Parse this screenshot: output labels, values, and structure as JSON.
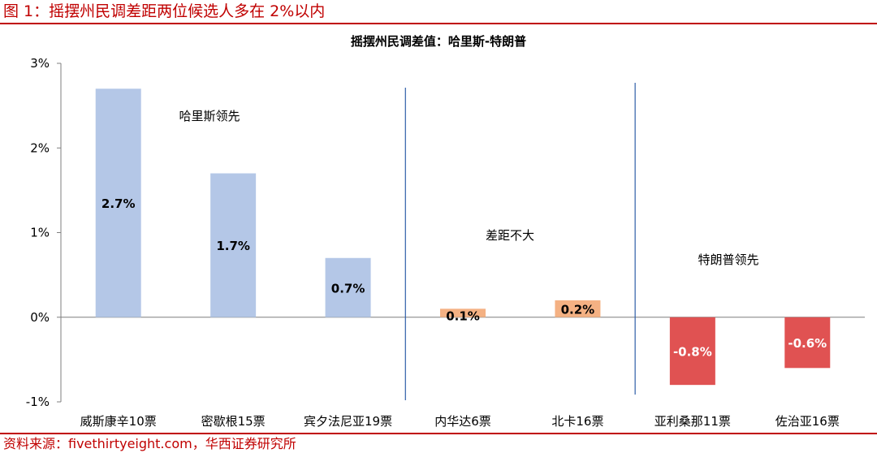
{
  "figure_title": "图 1：摇摆州民调差距两位候选人多在 2%以内",
  "source": "资料来源：fivethirtyeight.com，华西证券研究所",
  "chart_data": {
    "type": "bar",
    "title": "摇摆州民调差值：哈里斯-特朗普",
    "categories": [
      "威斯康辛10票",
      "密歇根15票",
      "宾夕法尼亚19票",
      "内华达6票",
      "北卡16票",
      "亚利桑那11票",
      "佐治亚16票"
    ],
    "values": [
      2.7,
      1.7,
      0.7,
      0.1,
      0.2,
      -0.8,
      -0.6
    ],
    "data_labels": [
      "2.7%",
      "1.7%",
      "0.7%",
      "0.1%",
      "0.2%",
      "-0.8%",
      "-0.6%"
    ],
    "ylim": [
      -1,
      3
    ],
    "yticks": [
      3,
      2,
      1,
      0,
      -1
    ],
    "ytick_labels": [
      "3%",
      "2%",
      "1%",
      "0%",
      "-1%"
    ],
    "bar_colors": [
      "#b4c7e7",
      "#b4c7e7",
      "#b4c7e7",
      "#f4b183",
      "#f4b183",
      "#e05252",
      "#e05252"
    ],
    "annotations": [
      "哈里斯领先",
      "差距不大",
      "特朗普领先"
    ],
    "grid": false,
    "legend": "none"
  }
}
